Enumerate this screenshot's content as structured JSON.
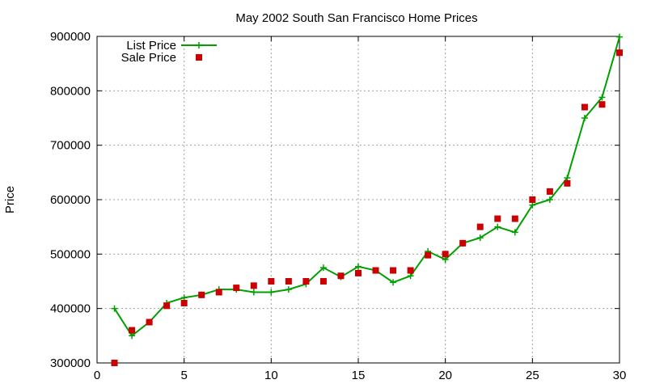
{
  "chart_data": {
    "type": "line",
    "title": "May 2002 South San Francisco Home Prices",
    "xlabel": "",
    "ylabel": "Price",
    "xlim": [
      0,
      30
    ],
    "ylim": [
      300000,
      900000
    ],
    "xticks": [
      0,
      5,
      10,
      15,
      20,
      25,
      30
    ],
    "yticks": [
      300000,
      400000,
      500000,
      600000,
      700000,
      800000,
      900000
    ],
    "grid": true,
    "legend_position": "top-left",
    "x": [
      1,
      2,
      3,
      4,
      5,
      6,
      7,
      8,
      9,
      10,
      11,
      12,
      13,
      14,
      15,
      16,
      17,
      18,
      19,
      20,
      21,
      22,
      23,
      24,
      25,
      26,
      27,
      28,
      29,
      30
    ],
    "series": [
      {
        "name": "List Price",
        "style": "line+cross",
        "color": "#00a000",
        "values": [
          400000,
          350000,
          375000,
          410000,
          420000,
          425000,
          435000,
          435000,
          430000,
          430000,
          435000,
          445000,
          475000,
          458000,
          477000,
          470000,
          448000,
          460000,
          505000,
          490000,
          520000,
          530000,
          550000,
          540000,
          590000,
          600000,
          640000,
          750000,
          788000,
          899000
        ]
      },
      {
        "name": "Sale Price",
        "style": "square",
        "color": "#cc0000",
        "values": [
          300000,
          360000,
          375000,
          405000,
          410000,
          425000,
          430000,
          438000,
          442000,
          450000,
          450000,
          450000,
          450000,
          460000,
          465000,
          470000,
          470000,
          470000,
          498000,
          500000,
          520000,
          550000,
          565000,
          565000,
          600000,
          615000,
          630000,
          770000,
          775000,
          870000
        ]
      }
    ]
  }
}
